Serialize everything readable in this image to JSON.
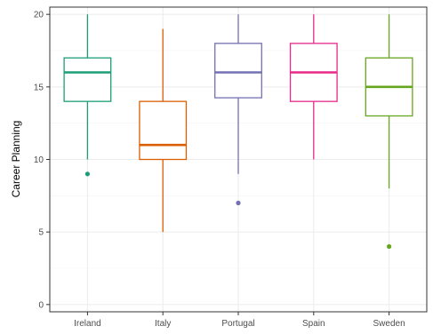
{
  "chart_data": {
    "type": "boxplot",
    "title": "",
    "xlabel": "",
    "ylabel": "Career Planning",
    "ylim": [
      -0.5,
      20.5
    ],
    "yticks": [
      0,
      5,
      10,
      15,
      20
    ],
    "grid": true,
    "legend": "none",
    "categories": [
      "Ireland",
      "Italy",
      "Portugal",
      "Spain",
      "Sweden"
    ],
    "boxes": [
      {
        "category": "Ireland",
        "min": 10,
        "q1": 14,
        "median": 16,
        "q3": 17,
        "max": 20,
        "outliers": [
          9
        ],
        "color": "#1b9e77"
      },
      {
        "category": "Italy",
        "min": 5,
        "q1": 10,
        "median": 11,
        "q3": 14,
        "max": 19,
        "outliers": [],
        "color": "#d95f02"
      },
      {
        "category": "Portugal",
        "min": 9,
        "q1": 14.25,
        "median": 16,
        "q3": 18,
        "max": 20,
        "outliers": [
          7
        ],
        "color": "#7570b3"
      },
      {
        "category": "Spain",
        "min": 10,
        "q1": 14,
        "median": 16,
        "q3": 18,
        "max": 20,
        "outliers": [],
        "color": "#e7298a"
      },
      {
        "category": "Sweden",
        "min": 8,
        "q1": 13,
        "median": 15,
        "q3": 17,
        "max": 20,
        "outliers": [
          4
        ],
        "color": "#66a61e"
      }
    ]
  }
}
